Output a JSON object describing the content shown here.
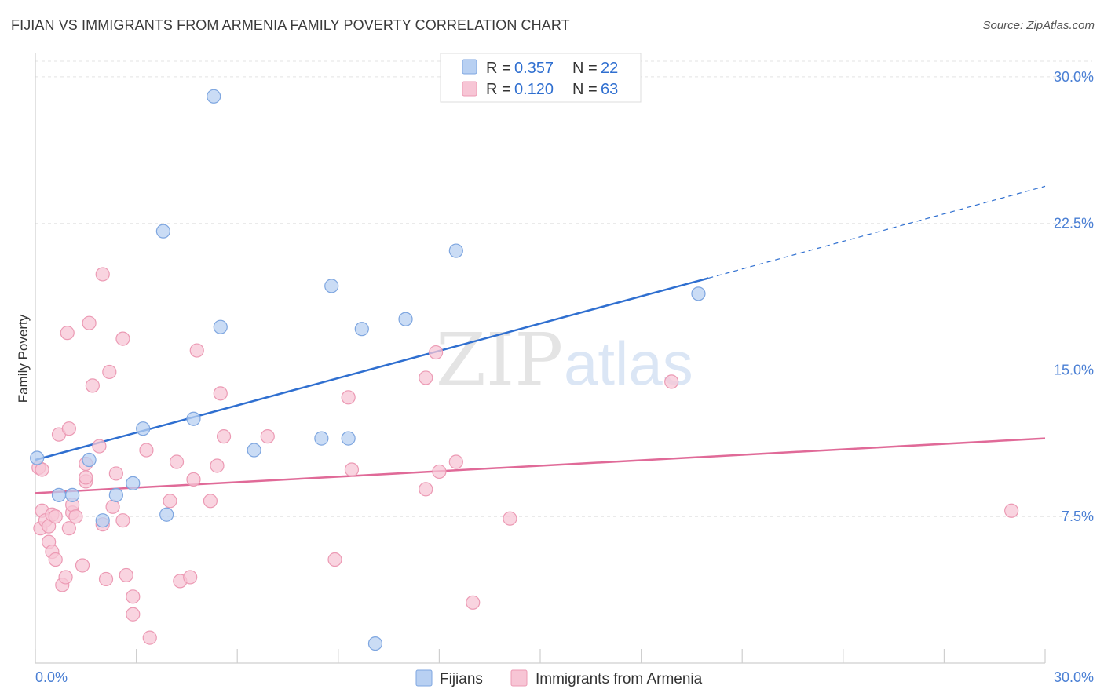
{
  "title": "FIJIAN VS IMMIGRANTS FROM ARMENIA FAMILY POVERTY CORRELATION CHART",
  "source": "Source: ZipAtlas.com",
  "watermark": {
    "zip": "ZIP",
    "atlas": "atlas"
  },
  "colors": {
    "fijian_fill": "#b8d0f2",
    "fijian_stroke": "#7ea6e0",
    "fijian_line": "#2f6fd0",
    "armenia_fill": "#f7c5d5",
    "armenia_stroke": "#ec9ab4",
    "armenia_line": "#e06a98",
    "grid": "#e3e3e3",
    "tick_text": "#4a7fd4"
  },
  "legend": {
    "rows": [
      {
        "r_label": "R = ",
        "r_value": "0.357",
        "n_label": "N = ",
        "n_value": "22"
      },
      {
        "r_label": "R = ",
        "r_value": "0.120",
        "n_label": "N = ",
        "n_value": "63"
      }
    ]
  },
  "bottom_legend": [
    "Fijians",
    "Immigrants from Armenia"
  ],
  "chart_data": {
    "type": "scatter",
    "title": "FIJIAN VS IMMIGRANTS FROM ARMENIA FAMILY POVERTY CORRELATION CHART",
    "xlabel": "",
    "ylabel": "Family Poverty",
    "xlim": [
      0,
      30
    ],
    "ylim": [
      0,
      30.8
    ],
    "x_tick_labels": [
      "0.0%",
      "30.0%"
    ],
    "y_ticks": [
      7.5,
      15.0,
      22.5,
      30.0
    ],
    "y_tick_labels": [
      "7.5%",
      "15.0%",
      "22.5%",
      "30.0%"
    ],
    "grid": "horizontal dashed",
    "legend_position": "top-center",
    "series": [
      {
        "name": "Fijians",
        "r": 0.357,
        "n": 22,
        "trend": {
          "x0": 0,
          "y0": 10.4,
          "x1": 20.0,
          "y1": 19.7,
          "dashed_to_x": 30,
          "dashed_to_y": 24.4
        },
        "points": [
          [
            0.05,
            10.5
          ],
          [
            1.6,
            10.4
          ],
          [
            0.7,
            8.6
          ],
          [
            1.1,
            8.6
          ],
          [
            2.0,
            7.3
          ],
          [
            2.4,
            8.6
          ],
          [
            2.9,
            9.2
          ],
          [
            3.2,
            12.0
          ],
          [
            3.9,
            7.6
          ],
          [
            4.7,
            12.5
          ],
          [
            5.3,
            29.0
          ],
          [
            5.5,
            17.2
          ],
          [
            3.8,
            22.1
          ],
          [
            6.5,
            10.9
          ],
          [
            8.5,
            11.5
          ],
          [
            9.3,
            11.5
          ],
          [
            8.8,
            19.3
          ],
          [
            9.7,
            17.1
          ],
          [
            11.0,
            17.6
          ],
          [
            12.5,
            21.1
          ],
          [
            10.1,
            1.0
          ],
          [
            19.7,
            18.9
          ]
        ]
      },
      {
        "name": "Immigrants from Armenia",
        "r": 0.12,
        "n": 63,
        "trend": {
          "x0": 0,
          "y0": 8.7,
          "x1": 30,
          "y1": 11.5
        },
        "points": [
          [
            0.1,
            10.0
          ],
          [
            0.2,
            9.9
          ],
          [
            0.15,
            6.9
          ],
          [
            0.2,
            7.8
          ],
          [
            0.3,
            7.3
          ],
          [
            0.4,
            7.0
          ],
          [
            0.5,
            7.6
          ],
          [
            0.4,
            6.2
          ],
          [
            0.5,
            5.7
          ],
          [
            0.6,
            5.3
          ],
          [
            0.6,
            7.5
          ],
          [
            0.7,
            11.7
          ],
          [
            0.8,
            4.0
          ],
          [
            0.9,
            4.4
          ],
          [
            1.0,
            12.0
          ],
          [
            1.1,
            7.7
          ],
          [
            1.0,
            6.9
          ],
          [
            1.1,
            8.1
          ],
          [
            1.2,
            7.5
          ],
          [
            0.95,
            16.9
          ],
          [
            1.4,
            5.0
          ],
          [
            1.5,
            10.2
          ],
          [
            1.5,
            9.3
          ],
          [
            1.5,
            9.5
          ],
          [
            1.6,
            17.4
          ],
          [
            1.7,
            14.2
          ],
          [
            1.9,
            11.1
          ],
          [
            2.0,
            7.1
          ],
          [
            2.1,
            4.3
          ],
          [
            2.0,
            19.9
          ],
          [
            2.2,
            14.9
          ],
          [
            2.3,
            8.0
          ],
          [
            2.4,
            9.7
          ],
          [
            2.6,
            7.3
          ],
          [
            2.6,
            16.6
          ],
          [
            2.7,
            4.5
          ],
          [
            2.9,
            3.4
          ],
          [
            2.9,
            2.5
          ],
          [
            3.3,
            10.9
          ],
          [
            3.4,
            1.3
          ],
          [
            4.0,
            8.3
          ],
          [
            4.2,
            10.3
          ],
          [
            4.3,
            4.2
          ],
          [
            4.6,
            4.4
          ],
          [
            4.7,
            9.4
          ],
          [
            4.8,
            16.0
          ],
          [
            5.2,
            8.3
          ],
          [
            5.4,
            10.1
          ],
          [
            5.6,
            11.6
          ],
          [
            5.5,
            13.8
          ],
          [
            6.9,
            11.6
          ],
          [
            8.9,
            5.3
          ],
          [
            9.3,
            13.6
          ],
          [
            9.4,
            9.9
          ],
          [
            11.6,
            14.6
          ],
          [
            11.6,
            8.9
          ],
          [
            11.9,
            15.9
          ],
          [
            12.0,
            9.8
          ],
          [
            12.5,
            10.3
          ],
          [
            13.0,
            3.1
          ],
          [
            14.1,
            7.4
          ],
          [
            18.9,
            14.4
          ],
          [
            29.0,
            7.8
          ]
        ]
      }
    ]
  },
  "y_axis_title": "Family Poverty"
}
